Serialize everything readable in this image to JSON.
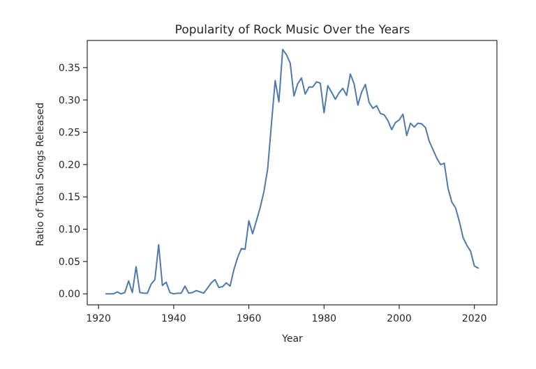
{
  "chart_data": {
    "type": "line",
    "title": "Popularity of Rock Music Over the Years",
    "xlabel": "Year",
    "ylabel": "Ratio of Total Songs Released",
    "xlim": [
      1917,
      2026
    ],
    "ylim": [
      -0.017,
      0.392
    ],
    "xticks": [
      1920,
      1940,
      1960,
      1980,
      2000,
      2020
    ],
    "xtick_labels": [
      "1920",
      "1940",
      "1960",
      "1980",
      "2000",
      "2020"
    ],
    "yticks": [
      0.0,
      0.05,
      0.1,
      0.15,
      0.2,
      0.25,
      0.3,
      0.35
    ],
    "ytick_labels": [
      "0.00",
      "0.05",
      "0.10",
      "0.15",
      "0.20",
      "0.25",
      "0.30",
      "0.35"
    ],
    "grid": false,
    "legend": "none",
    "series": [
      {
        "color": "#4c79b0",
        "x": [
          1922,
          1923,
          1924,
          1925,
          1926,
          1927,
          1928,
          1929,
          1930,
          1931,
          1932,
          1933,
          1934,
          1935,
          1936,
          1937,
          1938,
          1939,
          1940,
          1941,
          1942,
          1943,
          1944,
          1945,
          1946,
          1947,
          1948,
          1949,
          1950,
          1951,
          1952,
          1953,
          1954,
          1955,
          1956,
          1957,
          1958,
          1959,
          1960,
          1961,
          1962,
          1963,
          1964,
          1965,
          1966,
          1967,
          1968,
          1969,
          1970,
          1971,
          1972,
          1973,
          1974,
          1975,
          1976,
          1977,
          1978,
          1979,
          1980,
          1981,
          1982,
          1983,
          1984,
          1985,
          1986,
          1987,
          1988,
          1989,
          1990,
          1991,
          1992,
          1993,
          1994,
          1995,
          1996,
          1997,
          1998,
          1999,
          2000,
          2001,
          2002,
          2003,
          2004,
          2005,
          2006,
          2007,
          2008,
          2009,
          2010,
          2011,
          2012,
          2013,
          2014,
          2015,
          2016,
          2017,
          2018,
          2019,
          2020,
          2021
        ],
        "y": [
          0.0,
          0.0,
          0.0,
          0.003,
          0.0,
          0.002,
          0.02,
          0.002,
          0.042,
          0.002,
          0.001,
          0.001,
          0.015,
          0.022,
          0.076,
          0.013,
          0.018,
          0.002,
          0.0,
          0.001,
          0.001,
          0.012,
          0.001,
          0.002,
          0.005,
          0.003,
          0.001,
          0.009,
          0.017,
          0.022,
          0.01,
          0.011,
          0.017,
          0.012,
          0.037,
          0.056,
          0.07,
          0.069,
          0.113,
          0.093,
          0.113,
          0.133,
          0.158,
          0.193,
          0.262,
          0.33,
          0.297,
          0.378,
          0.37,
          0.357,
          0.306,
          0.325,
          0.334,
          0.309,
          0.32,
          0.32,
          0.328,
          0.326,
          0.28,
          0.322,
          0.312,
          0.301,
          0.311,
          0.318,
          0.307,
          0.34,
          0.325,
          0.292,
          0.312,
          0.324,
          0.296,
          0.287,
          0.291,
          0.279,
          0.277,
          0.268,
          0.254,
          0.265,
          0.269,
          0.278,
          0.245,
          0.264,
          0.258,
          0.264,
          0.263,
          0.257,
          0.236,
          0.223,
          0.21,
          0.2,
          0.202,
          0.163,
          0.142,
          0.133,
          0.112,
          0.087,
          0.075,
          0.066,
          0.043,
          0.04
        ]
      }
    ]
  }
}
